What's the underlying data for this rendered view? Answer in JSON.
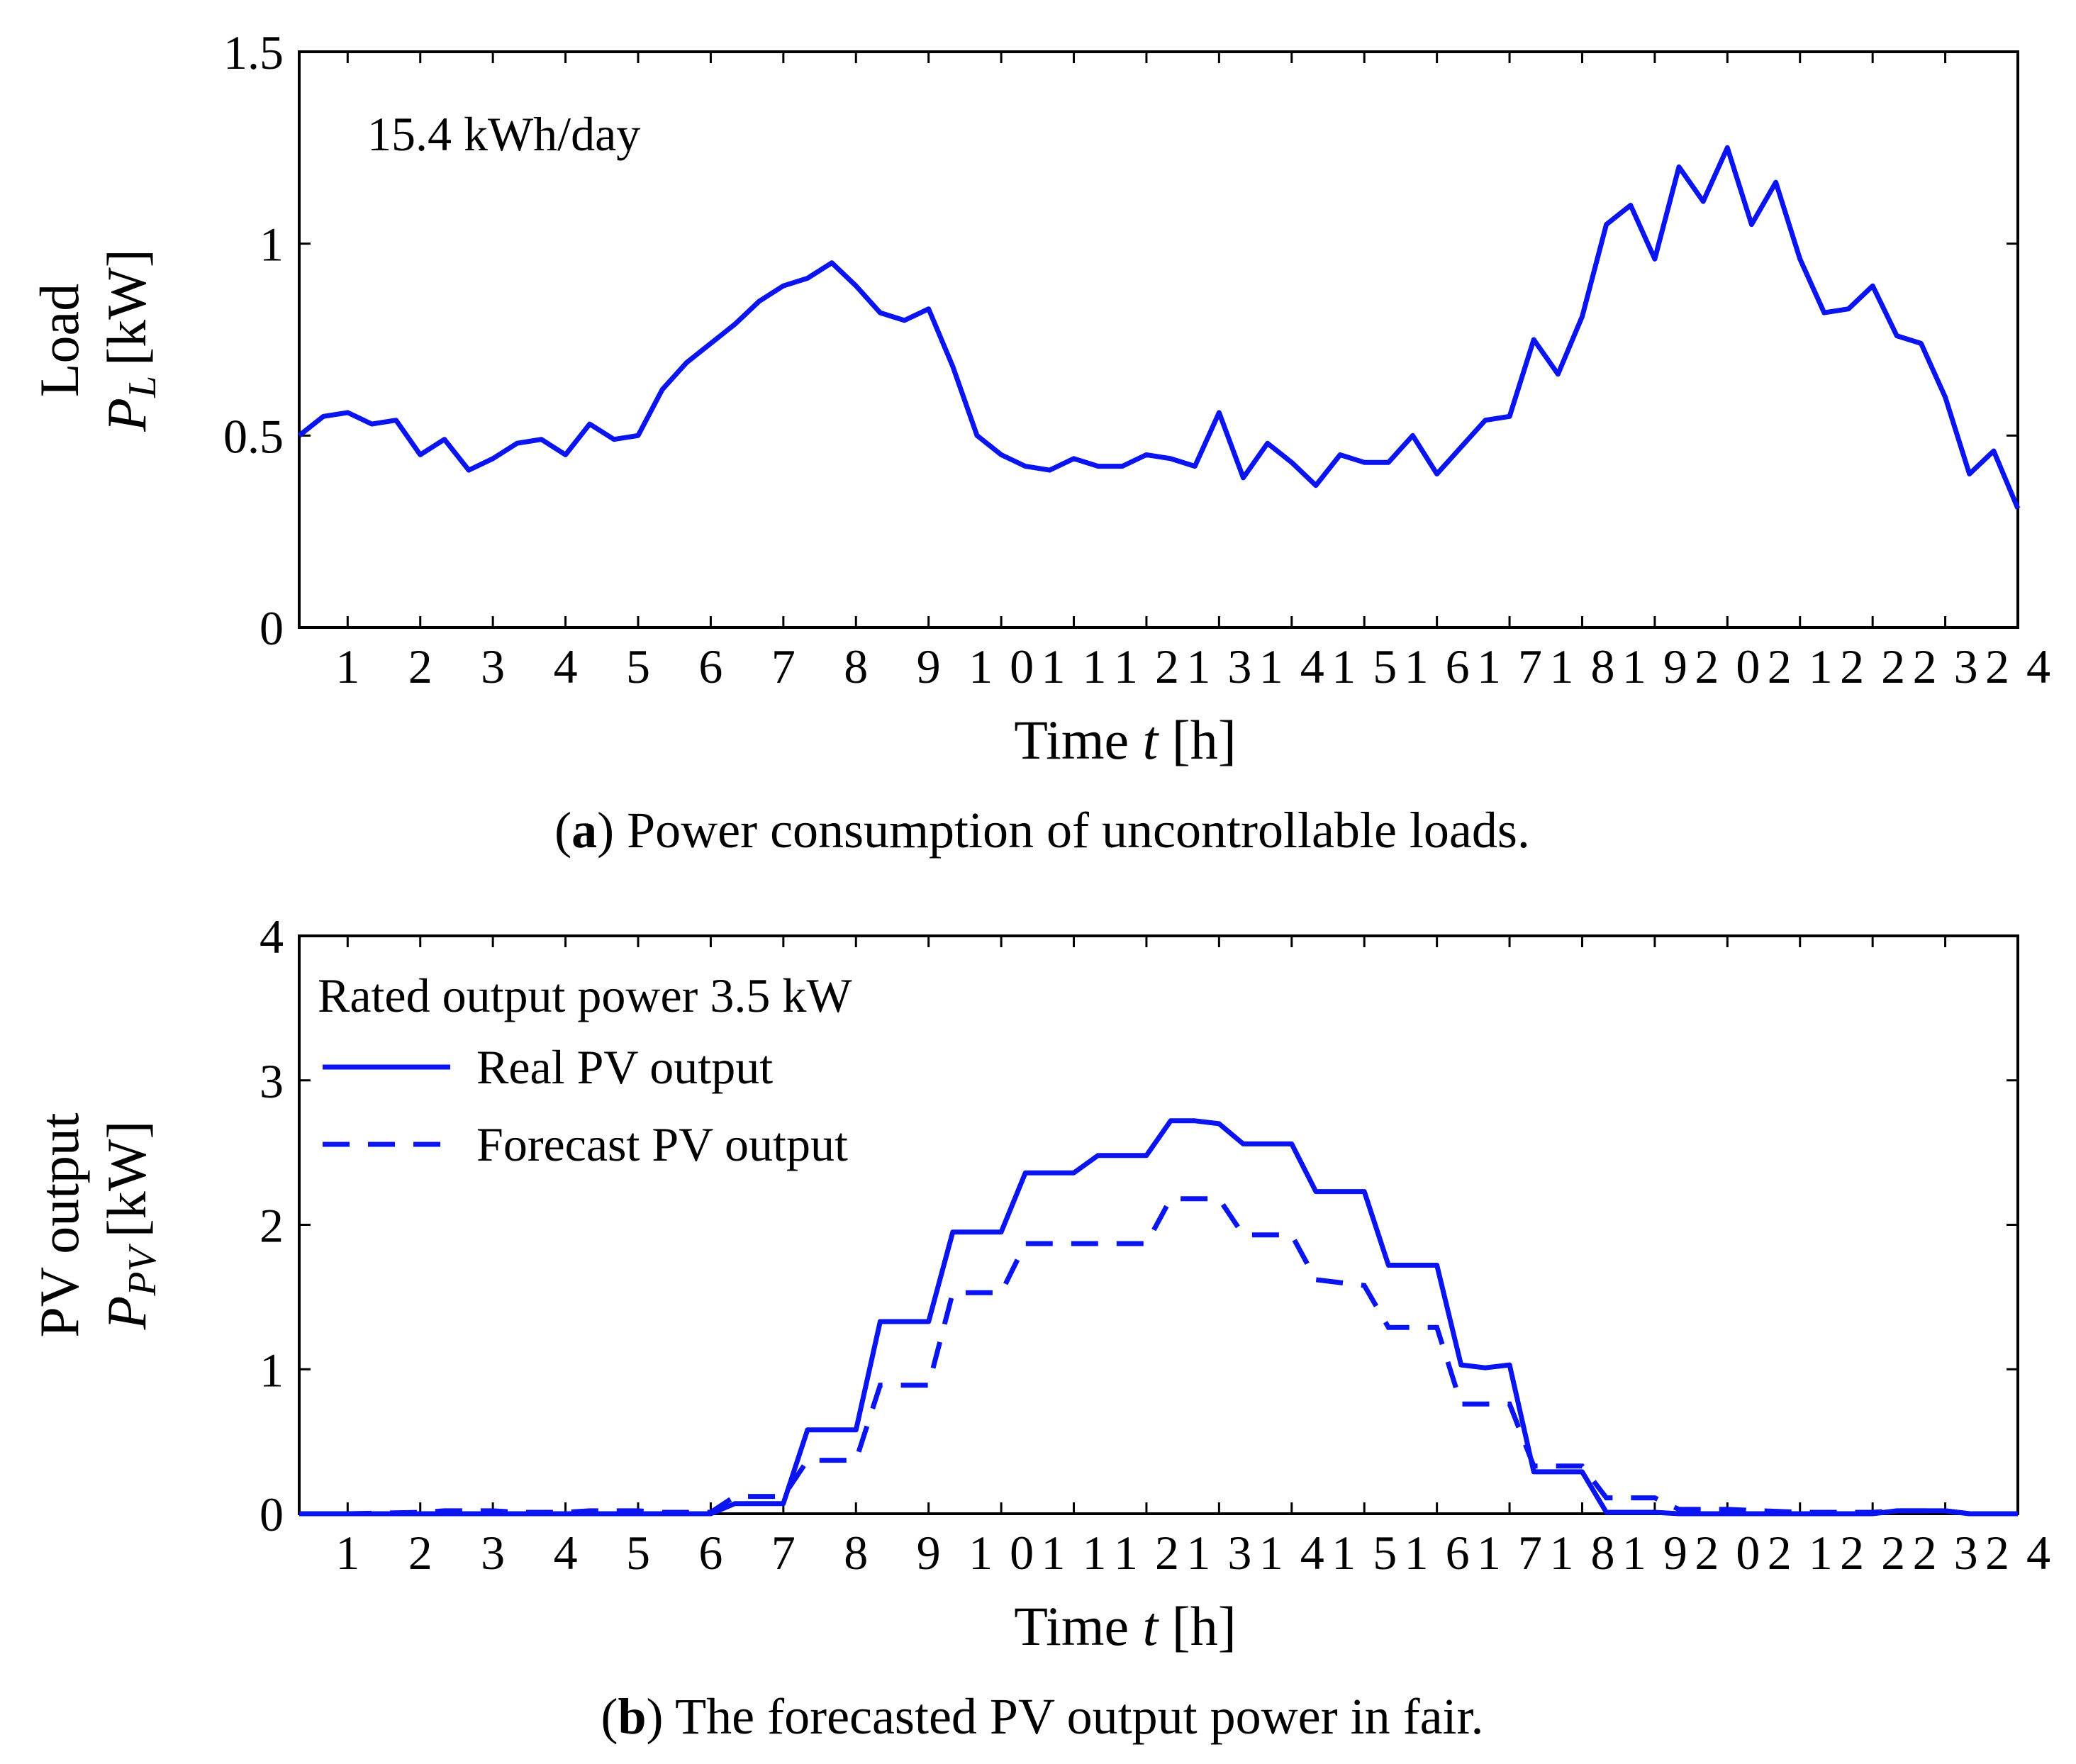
{
  "chart_data": [
    {
      "id": "a",
      "type": "line",
      "caption_letter": "a",
      "caption_text": "Power consumption of uncontrollable loads.",
      "annotation": "15.4 kWh/day",
      "ylabel_line1": "Load",
      "ylabel_symbol": "P",
      "ylabel_subscript": "L",
      "ylabel_unit": "[kW]",
      "xlabel_pre": "Time ",
      "xlabel_var": "t",
      "xlabel_post": " [h]",
      "xlim": [
        0.333,
        24
      ],
      "ylim": [
        0,
        1.5
      ],
      "xticks": [
        "1",
        "2",
        "3",
        "4",
        "5",
        "6",
        "7",
        "8",
        "9",
        "10",
        "11",
        "12",
        "13",
        "14",
        "15",
        "16",
        "17",
        "18",
        "19",
        "20",
        "21",
        "22",
        "23",
        "24"
      ],
      "yticks": [
        "0",
        "0.5",
        "1",
        "1.5"
      ],
      "color": "#0a14f0",
      "series": [
        {
          "name": "Load",
          "x": [
            0.333,
            0.667,
            1,
            1.333,
            1.667,
            2,
            2.333,
            2.667,
            3,
            3.333,
            3.667,
            4,
            4.333,
            4.667,
            5,
            5.333,
            5.667,
            6,
            6.333,
            6.667,
            7,
            7.333,
            7.667,
            8,
            8.333,
            8.667,
            9,
            9.333,
            9.667,
            10,
            10.333,
            10.667,
            11,
            11.333,
            11.667,
            12,
            12.333,
            12.667,
            13,
            13.333,
            13.667,
            14,
            14.333,
            14.667,
            15,
            15.333,
            15.667,
            16,
            16.333,
            16.667,
            17,
            17.333,
            17.667,
            18,
            18.333,
            18.667,
            19,
            19.333,
            19.667,
            20,
            20.333,
            20.667,
            21,
            21.333,
            21.667,
            22,
            22.333,
            22.667,
            23,
            23.333,
            23.667,
            24
          ],
          "values": [
            0.5,
            0.55,
            0.56,
            0.53,
            0.54,
            0.45,
            0.49,
            0.41,
            0.44,
            0.48,
            0.49,
            0.45,
            0.53,
            0.49,
            0.5,
            0.62,
            0.69,
            0.74,
            0.79,
            0.85,
            0.89,
            0.91,
            0.95,
            0.89,
            0.82,
            0.8,
            0.83,
            0.68,
            0.5,
            0.45,
            0.42,
            0.41,
            0.44,
            0.42,
            0.42,
            0.45,
            0.44,
            0.42,
            0.56,
            0.39,
            0.48,
            0.43,
            0.37,
            0.45,
            0.43,
            0.43,
            0.5,
            0.4,
            0.47,
            0.54,
            0.55,
            0.75,
            0.66,
            0.81,
            1.05,
            1.1,
            0.96,
            1.2,
            1.11,
            1.25,
            1.05,
            1.16,
            0.96,
            0.82,
            0.83,
            0.89,
            0.76,
            0.74,
            0.6,
            0.4,
            0.46,
            0.31
          ]
        }
      ]
    },
    {
      "id": "b",
      "type": "line",
      "caption_letter": "b",
      "caption_text": "The forecasted PV output power in fair.",
      "annotation": "Rated output power 3.5 kW",
      "ylabel_line1": "PV output",
      "ylabel_symbol": "P",
      "ylabel_subscript": "PV",
      "ylabel_unit": "[kW]",
      "xlabel_pre": "Time ",
      "xlabel_var": "t",
      "xlabel_post": " [h]",
      "xlim": [
        0.333,
        24
      ],
      "ylim": [
        0,
        4
      ],
      "xticks": [
        "1",
        "2",
        "3",
        "4",
        "5",
        "6",
        "7",
        "8",
        "9",
        "10",
        "11",
        "12",
        "13",
        "14",
        "15",
        "16",
        "17",
        "18",
        "19",
        "20",
        "21",
        "22",
        "23",
        "24"
      ],
      "yticks": [
        "0",
        "1",
        "2",
        "3",
        "4"
      ],
      "color": "#0a14f0",
      "series": [
        {
          "name": "Real PV output",
          "style": "solid",
          "x": [
            0.333,
            1,
            2,
            3,
            4,
            5,
            6,
            6.333,
            7,
            7.333,
            8,
            8.333,
            9,
            9.333,
            10,
            10.333,
            11,
            11.333,
            12,
            12.333,
            12.667,
            13,
            13.333,
            14,
            14.333,
            15,
            15.333,
            16,
            16.333,
            16.667,
            17,
            17.333,
            18,
            18.333,
            19,
            19.333,
            20,
            21,
            22,
            22.333,
            23,
            23.333,
            24
          ],
          "values": [
            0,
            0,
            0,
            0,
            0,
            0,
            0,
            0.07,
            0.07,
            0.58,
            0.58,
            1.33,
            1.33,
            1.95,
            1.95,
            2.36,
            2.36,
            2.48,
            2.48,
            2.72,
            2.72,
            2.7,
            2.56,
            2.56,
            2.23,
            2.23,
            1.72,
            1.72,
            1.03,
            1.01,
            1.03,
            0.29,
            0.29,
            0.01,
            0.01,
            0,
            0,
            0,
            0,
            0.02,
            0.02,
            0,
            0
          ]
        },
        {
          "name": "Forecast PV output",
          "style": "dashed",
          "x": [
            0.333,
            1,
            2,
            2.333,
            3,
            3.333,
            4,
            4.333,
            5,
            5.333,
            6,
            6.333,
            7,
            7.333,
            8,
            8.333,
            9,
            9.333,
            10,
            10.333,
            11,
            12,
            12.333,
            13,
            13.333,
            14,
            14.333,
            15,
            15.333,
            16,
            16.333,
            17,
            17.333,
            18,
            18.333,
            19,
            19.333,
            20,
            21,
            22,
            22.333,
            23,
            23.333,
            24
          ],
          "values": [
            0,
            0,
            0.01,
            0.02,
            0.02,
            0.01,
            0.01,
            0.02,
            0.02,
            0.01,
            0.01,
            0.12,
            0.12,
            0.37,
            0.37,
            0.89,
            0.89,
            1.53,
            1.53,
            1.87,
            1.87,
            1.87,
            2.18,
            2.18,
            1.93,
            1.93,
            1.62,
            1.58,
            1.29,
            1.29,
            0.76,
            0.76,
            0.33,
            0.33,
            0.11,
            0.11,
            0.03,
            0.03,
            0.01,
            0.01,
            0.02,
            0.02,
            0,
            0
          ]
        }
      ]
    }
  ]
}
